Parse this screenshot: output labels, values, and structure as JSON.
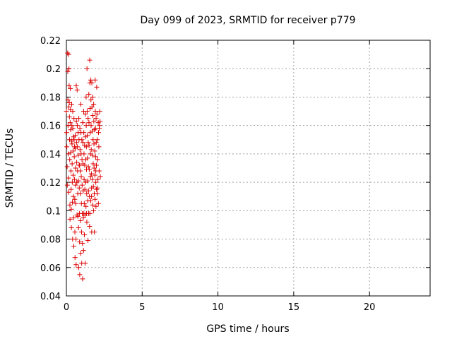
{
  "chart_data": {
    "type": "scatter",
    "title": "Day 099 of 2023, SRMTID for receiver p779",
    "xlabel": "GPS time / hours",
    "ylabel": "SRMTID / TECUs",
    "xlim": [
      0,
      24
    ],
    "ylim": [
      0.04,
      0.22
    ],
    "xticks": [
      0,
      5,
      10,
      15,
      20
    ],
    "xtick_labels": [
      "0",
      "5",
      "10",
      "15",
      "20"
    ],
    "yticks": [
      0.04,
      0.06,
      0.08,
      0.1,
      0.12,
      0.14,
      0.16,
      0.18,
      0.2,
      0.22
    ],
    "ytick_labels": [
      "0.04",
      "0.06",
      "0.08",
      "0.1",
      "0.12",
      "0.14",
      "0.16",
      "0.18",
      "0.2",
      "0.22"
    ],
    "grid": true,
    "marker": "+",
    "color": "#dd0000",
    "series": [
      {
        "points": [
          [
            0.0,
            0.17
          ],
          [
            0.02,
            0.155
          ],
          [
            0.03,
            0.145
          ],
          [
            0.05,
            0.131
          ],
          [
            0.06,
            0.118
          ],
          [
            0.08,
            0.211
          ],
          [
            0.09,
            0.198
          ],
          [
            0.1,
            0.178
          ],
          [
            0.11,
            0.16
          ],
          [
            0.12,
            0.14
          ],
          [
            0.13,
            0.123
          ],
          [
            0.14,
            0.113
          ],
          [
            0.15,
            0.21
          ],
          [
            0.17,
            0.2
          ],
          [
            0.18,
            0.188
          ],
          [
            0.19,
            0.176
          ],
          [
            0.2,
            0.166
          ],
          [
            0.21,
            0.15
          ],
          [
            0.22,
            0.136
          ],
          [
            0.23,
            0.104
          ],
          [
            0.24,
            0.094
          ],
          [
            0.26,
            0.186
          ],
          [
            0.27,
            0.171
          ],
          [
            0.28,
            0.157
          ],
          [
            0.29,
            0.141
          ],
          [
            0.3,
            0.128
          ],
          [
            0.31,
            0.115
          ],
          [
            0.32,
            0.101
          ],
          [
            0.33,
            0.088
          ],
          [
            0.35,
            0.175
          ],
          [
            0.36,
            0.16
          ],
          [
            0.37,
            0.147
          ],
          [
            0.38,
            0.133
          ],
          [
            0.39,
            0.12
          ],
          [
            0.4,
            0.106
          ],
          [
            0.41,
            0.08
          ],
          [
            0.42,
            0.17
          ],
          [
            0.43,
            0.158
          ],
          [
            0.44,
            0.142
          ],
          [
            0.45,
            0.125
          ],
          [
            0.46,
            0.11
          ],
          [
            0.48,
            0.095
          ],
          [
            0.49,
            0.075
          ],
          [
            0.5,
            0.165
          ],
          [
            0.51,
            0.15
          ],
          [
            0.52,
            0.138
          ],
          [
            0.53,
            0.122
          ],
          [
            0.55,
            0.108
          ],
          [
            0.56,
            0.085
          ],
          [
            0.57,
            0.067
          ],
          [
            0.58,
            0.153
          ],
          [
            0.59,
            0.144
          ],
          [
            0.6,
            0.13
          ],
          [
            0.61,
            0.118
          ],
          [
            0.62,
            0.105
          ],
          [
            0.63,
            0.08
          ],
          [
            0.64,
            0.062
          ],
          [
            0.65,
            0.188
          ],
          [
            0.66,
            0.163
          ],
          [
            0.67,
            0.148
          ],
          [
            0.68,
            0.134
          ],
          [
            0.69,
            0.12
          ],
          [
            0.7,
            0.097
          ],
          [
            0.71,
            0.185
          ],
          [
            0.72,
            0.16
          ],
          [
            0.73,
            0.145
          ],
          [
            0.74,
            0.128
          ],
          [
            0.75,
            0.112
          ],
          [
            0.76,
            0.096
          ],
          [
            0.77,
            0.155
          ],
          [
            0.78,
            0.139
          ],
          [
            0.79,
            0.121
          ],
          [
            0.8,
            0.088
          ],
          [
            0.81,
            0.06
          ],
          [
            0.82,
            0.165
          ],
          [
            0.83,
            0.15
          ],
          [
            0.84,
            0.132
          ],
          [
            0.85,
            0.116
          ],
          [
            0.86,
            0.098
          ],
          [
            0.87,
            0.078
          ],
          [
            0.88,
            0.055
          ],
          [
            0.89,
            0.158
          ],
          [
            0.9,
            0.143
          ],
          [
            0.91,
            0.128
          ],
          [
            0.92,
            0.112
          ],
          [
            0.93,
            0.093
          ],
          [
            0.94,
            0.07
          ],
          [
            0.95,
            0.175
          ],
          [
            0.96,
            0.155
          ],
          [
            0.97,
            0.14
          ],
          [
            0.98,
            0.124
          ],
          [
            0.99,
            0.105
          ],
          [
            1.0,
            0.085
          ],
          [
            1.01,
            0.063
          ],
          [
            1.02,
            0.15
          ],
          [
            1.03,
            0.136
          ],
          [
            1.04,
            0.118
          ],
          [
            1.05,
            0.098
          ],
          [
            1.06,
            0.077
          ],
          [
            1.07,
            0.052
          ],
          [
            1.08,
            0.162
          ],
          [
            1.09,
            0.148
          ],
          [
            1.1,
            0.133
          ],
          [
            1.11,
            0.114
          ],
          [
            1.12,
            0.095
          ],
          [
            1.13,
            0.072
          ],
          [
            1.14,
            0.17
          ],
          [
            1.15,
            0.155
          ],
          [
            1.16,
            0.14
          ],
          [
            1.17,
            0.122
          ],
          [
            1.18,
            0.105
          ],
          [
            1.19,
            0.083
          ],
          [
            1.2,
            0.146
          ],
          [
            1.21,
            0.132
          ],
          [
            1.22,
            0.115
          ],
          [
            1.23,
            0.097
          ],
          [
            1.24,
            0.063
          ],
          [
            1.25,
            0.168
          ],
          [
            1.26,
            0.152
          ],
          [
            1.27,
            0.136
          ],
          [
            1.28,
            0.12
          ],
          [
            1.29,
            0.103
          ],
          [
            1.3,
            0.18
          ],
          [
            1.31,
            0.16
          ],
          [
            1.32,
            0.145
          ],
          [
            1.33,
            0.129
          ],
          [
            1.34,
            0.112
          ],
          [
            1.35,
            0.092
          ],
          [
            1.36,
            0.2
          ],
          [
            1.37,
            0.17
          ],
          [
            1.38,
            0.153
          ],
          [
            1.39,
            0.137
          ],
          [
            1.4,
            0.121
          ],
          [
            1.41,
            0.107
          ],
          [
            1.42,
            0.079
          ],
          [
            1.43,
            0.165
          ],
          [
            1.44,
            0.148
          ],
          [
            1.45,
            0.131
          ],
          [
            1.46,
            0.114
          ],
          [
            1.47,
            0.098
          ],
          [
            1.48,
            0.182
          ],
          [
            1.49,
            0.162
          ],
          [
            1.5,
            0.146
          ],
          [
            1.51,
            0.129
          ],
          [
            1.52,
            0.11
          ],
          [
            1.53,
            0.089
          ],
          [
            1.54,
            0.206
          ],
          [
            1.55,
            0.19
          ],
          [
            1.56,
            0.172
          ],
          [
            1.57,
            0.155
          ],
          [
            1.58,
            0.14
          ],
          [
            1.59,
            0.124
          ],
          [
            1.6,
            0.107
          ],
          [
            1.61,
            0.192
          ],
          [
            1.62,
            0.178
          ],
          [
            1.63,
            0.16
          ],
          [
            1.64,
            0.143
          ],
          [
            1.65,
            0.126
          ],
          [
            1.66,
            0.11
          ],
          [
            1.67,
            0.085
          ],
          [
            1.68,
            0.19
          ],
          [
            1.69,
            0.173
          ],
          [
            1.7,
            0.156
          ],
          [
            1.71,
            0.139
          ],
          [
            1.72,
            0.122
          ],
          [
            1.73,
            0.104
          ],
          [
            1.74,
            0.18
          ],
          [
            1.75,
            0.167
          ],
          [
            1.76,
            0.15
          ],
          [
            1.77,
            0.133
          ],
          [
            1.78,
            0.117
          ],
          [
            1.79,
            0.1
          ],
          [
            1.8,
            0.175
          ],
          [
            1.81,
            0.163
          ],
          [
            1.82,
            0.147
          ],
          [
            1.83,
            0.13
          ],
          [
            1.84,
            0.112
          ],
          [
            1.85,
            0.085
          ],
          [
            1.86,
            0.157
          ],
          [
            1.87,
            0.142
          ],
          [
            1.88,
            0.125
          ],
          [
            1.89,
            0.108
          ],
          [
            1.9,
            0.192
          ],
          [
            1.91,
            0.17
          ],
          [
            1.92,
            0.158
          ],
          [
            1.93,
            0.138
          ],
          [
            1.94,
            0.12
          ],
          [
            1.95,
            0.103
          ],
          [
            1.96,
            0.165
          ],
          [
            1.97,
            0.148
          ],
          [
            1.98,
            0.132
          ],
          [
            1.99,
            0.115
          ],
          [
            2.0,
            0.187
          ],
          [
            2.02,
            0.168
          ],
          [
            2.04,
            0.15
          ],
          [
            2.06,
            0.136
          ],
          [
            2.08,
            0.122
          ],
          [
            2.1,
            0.162
          ],
          [
            2.12,
            0.155
          ],
          [
            2.14,
            0.145
          ],
          [
            2.16,
            0.128
          ],
          [
            2.18,
            0.16
          ],
          [
            2.2,
            0.17
          ],
          [
            2.22,
            0.163
          ],
          [
            2.24,
            0.124
          ],
          [
            2.05,
            0.112
          ],
          [
            2.11,
            0.105
          ],
          [
            2.17,
            0.158
          ],
          [
            0.16,
            0.173
          ],
          [
            0.25,
            0.162
          ],
          [
            0.34,
            0.149
          ],
          [
            0.47,
            0.152
          ],
          [
            0.54,
            0.145
          ],
          [
            0.88,
            0.132
          ],
          [
            1.15,
            0.098
          ],
          [
            1.33,
            0.098
          ],
          [
            1.55,
            0.098
          ],
          [
            1.66,
            0.116
          ],
          [
            1.94,
            0.128
          ],
          [
            2.03,
            0.116
          ]
        ]
      }
    ]
  }
}
